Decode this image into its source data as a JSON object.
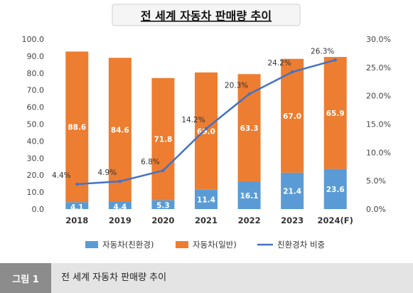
{
  "caption": {
    "tag": "그림 1",
    "text": "전 세계 자동차 판매량 추이"
  },
  "chart_data": {
    "type": "bar",
    "stacked": true,
    "title": "전 세계 자동차 판매량 추이",
    "categories": [
      "2018",
      "2019",
      "2020",
      "2021",
      "2022",
      "2023",
      "2024(F)"
    ],
    "series": [
      {
        "name": "자동차(친환경)",
        "kind": "bar",
        "axis": "left",
        "color": "#5b9bd5",
        "values": [
          4.1,
          4.4,
          5.3,
          11.4,
          16.1,
          21.4,
          23.6
        ],
        "labels": [
          "4.1",
          "4.4",
          "5.3",
          "11.4",
          "16.1",
          "21.4",
          "23.6"
        ]
      },
      {
        "name": "자동차(일반)",
        "kind": "bar",
        "axis": "left",
        "color": "#ed7d31",
        "values": [
          88.6,
          84.6,
          71.8,
          69.0,
          63.3,
          67.0,
          65.9
        ],
        "labels": [
          "88.6",
          "84.6",
          "71.8",
          "69.0",
          "63.3",
          "67.0",
          "65.9"
        ]
      },
      {
        "name": "친환경차 비중",
        "kind": "line",
        "axis": "right",
        "color": "#4472c4",
        "values": [
          4.4,
          4.9,
          6.8,
          14.2,
          20.3,
          24.2,
          26.3
        ],
        "labels": [
          "4.4%",
          "4.9%",
          "6.8%",
          "14.2%",
          "20.3%",
          "24.2%",
          "26.3%"
        ]
      }
    ],
    "y_left": {
      "ylim": [
        0,
        100
      ],
      "ticks": [
        "0.0",
        "10.0",
        "20.0",
        "30.0",
        "40.0",
        "50.0",
        "60.0",
        "70.0",
        "80.0",
        "90.0",
        "100.0"
      ]
    },
    "y_right": {
      "ylim": [
        0,
        30
      ],
      "ticks": [
        "0.0%",
        "5.0%",
        "10.0%",
        "15.0%",
        "20.0%",
        "25.0%",
        "30.0%"
      ]
    },
    "grid": false,
    "legend_position": "bottom"
  }
}
